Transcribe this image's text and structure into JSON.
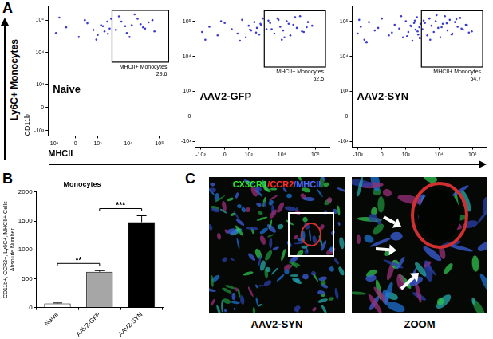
{
  "figure": {
    "panel_labels": [
      "A",
      "B",
      "C"
    ],
    "row_label": "Ly6C+ Monocytes"
  },
  "chart_data": [
    {
      "type": "scatter",
      "title": "Naive",
      "x_label": "MHCII",
      "y_label": "CD11b",
      "log": true,
      "grid": false,
      "marker": "circle",
      "color": "#3a3ad0",
      "xlim": [
        -1500,
        262143
      ],
      "ylim": [
        -1500,
        262143
      ],
      "xticks": [
        {
          "value": -1000,
          "label": "-10³"
        },
        0,
        {
          "value": 1000,
          "label": "10³"
        },
        {
          "value": 10000,
          "label": "10⁴"
        },
        {
          "value": 100000,
          "label": "10⁵"
        }
      ],
      "yticks": [
        {
          "value": -1000,
          "label": "-10³"
        },
        0,
        {
          "value": 1000,
          "label": "10³"
        },
        {
          "value": 10000,
          "label": "10⁴"
        },
        {
          "value": 100000,
          "label": "10⁵"
        }
      ],
      "x": [
        -800,
        -300,
        100,
        400,
        700,
        1000,
        1300,
        1700,
        2100,
        2500,
        -600,
        300,
        900,
        1500,
        2200,
        2800,
        4000,
        6000,
        9000,
        13000,
        20000,
        30000,
        45000,
        70000,
        5000,
        11000,
        25000,
        60000,
        8000,
        16000,
        35000
      ],
      "values": [
        40000,
        60000,
        30000,
        80000,
        50000,
        35000,
        70000,
        45000,
        90000,
        55000,
        120000,
        100000,
        25000,
        65000,
        38000,
        110000,
        50000,
        90000,
        40000,
        70000,
        110000,
        60000,
        85000,
        45000,
        130000,
        30000,
        75000,
        100000,
        65000,
        150000,
        55000
      ],
      "gate": {
        "x": [
          3000,
          200000
        ],
        "y": [
          5000,
          200000
        ],
        "label": "MHCII+ Monocytes",
        "value": 29.6
      }
    },
    {
      "type": "scatter",
      "title": "AAV2-GFP",
      "log": true,
      "grid": false,
      "marker": "circle",
      "color": "#3a3ad0",
      "xlim": [
        -1500,
        262143
      ],
      "ylim": [
        -1500,
        262143
      ],
      "xticks": [
        {
          "value": -1000,
          "label": "-10³"
        },
        0,
        {
          "value": 1000,
          "label": "10³"
        },
        {
          "value": 10000,
          "label": "10⁴"
        },
        {
          "value": 100000,
          "label": "10⁵"
        }
      ],
      "yticks": [
        {
          "value": -1000,
          "label": "-10³"
        },
        0,
        {
          "value": 1000,
          "label": "10³"
        },
        {
          "value": 10000,
          "label": "10⁴"
        },
        {
          "value": 100000,
          "label": "10⁵"
        }
      ],
      "x": [
        -900,
        -500,
        -200,
        0,
        200,
        400,
        600,
        800,
        1000,
        1200,
        1500,
        1800,
        2100,
        2400,
        2700,
        -700,
        -100,
        500,
        1100,
        1700,
        2300,
        3500,
        4500,
        6000,
        7500,
        9000,
        11000,
        14000,
        18000,
        22000,
        28000,
        35000,
        45000,
        60000,
        80000,
        5000,
        8000,
        12000,
        16000,
        25000,
        40000,
        55000,
        4000,
        10000
      ],
      "values": [
        50000,
        70000,
        40000,
        90000,
        60000,
        45000,
        110000,
        35000,
        75000,
        55000,
        95000,
        65000,
        42000,
        80000,
        120000,
        30000,
        100000,
        28000,
        58000,
        48000,
        85000,
        60000,
        90000,
        45000,
        120000,
        70000,
        55000,
        100000,
        40000,
        80000,
        65000,
        140000,
        50000,
        95000,
        75000,
        60000,
        110000,
        35000,
        85000,
        130000,
        52000,
        68000,
        105000,
        30000
      ],
      "gate": {
        "x": [
          3000,
          200000
        ],
        "y": [
          5000,
          200000
        ],
        "label": "MHCII+ Monocytes",
        "value": 52.5
      }
    },
    {
      "type": "scatter",
      "title": "AAV2-SYN",
      "log": true,
      "grid": false,
      "marker": "circle",
      "color": "#3a3ad0",
      "xlim": [
        -1500,
        262143
      ],
      "ylim": [
        -1500,
        262143
      ],
      "xticks": [
        {
          "value": -1000,
          "label": "-10³"
        },
        0,
        {
          "value": 1000,
          "label": "10³"
        },
        {
          "value": 10000,
          "label": "10⁴"
        },
        {
          "value": 100000,
          "label": "10⁵"
        }
      ],
      "yticks": [
        {
          "value": -1000,
          "label": "-10³"
        },
        0,
        {
          "value": 1000,
          "label": "10³"
        },
        {
          "value": 10000,
          "label": "10⁴"
        },
        {
          "value": 100000,
          "label": "10⁵"
        }
      ],
      "x": [
        -1000,
        -800,
        -600,
        -400,
        -200,
        0,
        200,
        400,
        600,
        800,
        1000,
        1200,
        1400,
        1600,
        1800,
        2000,
        2200,
        2400,
        2600,
        2800,
        -900,
        -500,
        -100,
        300,
        700,
        1100,
        1500,
        1900,
        2300,
        2700,
        3200,
        3800,
        4500,
        5200,
        6000,
        7000,
        8000,
        9500,
        11000,
        13000,
        15000,
        18000,
        21000,
        25000,
        30000,
        36000,
        43000,
        52000,
        63000,
        78000,
        3500,
        5500,
        8500,
        12000,
        17000,
        24000,
        33000,
        47000,
        68000,
        95000
      ],
      "values": [
        45000,
        70000,
        30000,
        95000,
        55000,
        120000,
        40000,
        80000,
        62000,
        35000,
        100000,
        50000,
        75000,
        28000,
        90000,
        58000,
        130000,
        42000,
        68000,
        85000,
        110000,
        25000,
        65000,
        48000,
        140000,
        38000,
        72000,
        105000,
        52000,
        33000,
        60000,
        90000,
        40000,
        120000,
        75000,
        50000,
        100000,
        65000,
        35000,
        85000,
        140000,
        55000,
        110000,
        45000,
        95000,
        70000,
        125000,
        58000,
        80000,
        48000,
        105000,
        30000,
        150000,
        68000,
        88000,
        42000,
        115000,
        62000,
        78000,
        52000
      ],
      "gate": {
        "x": [
          3000,
          200000
        ],
        "y": [
          5000,
          200000
        ],
        "label": "MHCII+ Monocytes",
        "value": 54.7
      }
    },
    {
      "type": "bar",
      "title": "Monocytes",
      "y_label": [
        "CD11b+, CCR2+, Ly6C+, MHCII+ Cells",
        "Absolute Number"
      ],
      "grid": false,
      "categories": [
        "Naive",
        "AAV2-GFP",
        "AAV2-SYN"
      ],
      "values": [
        70,
        620,
        1480
      ],
      "errors": [
        10,
        20,
        110
      ],
      "colors": [
        "#ffffff",
        "#a6a6a6",
        "#000000"
      ],
      "ylim": [
        0,
        2000
      ],
      "yticks": [
        0,
        500,
        1000,
        1500,
        2000
      ],
      "annotations": [
        {
          "text": "**",
          "between": [
            "Naive",
            "AAV2-GFP"
          ]
        },
        {
          "text": "***",
          "between": [
            "AAV2-GFP",
            "AAV2-SYN"
          ]
        }
      ]
    }
  ],
  "images": {
    "stains": [
      {
        "text": "CX3CR1",
        "color": "#33e033"
      },
      {
        "text": "/CCR2",
        "color": "#ff3030"
      },
      {
        "text": "/MHCII",
        "color": "#4a6cff"
      }
    ],
    "captions": [
      "AAV2-SYN",
      "ZOOM"
    ]
  }
}
